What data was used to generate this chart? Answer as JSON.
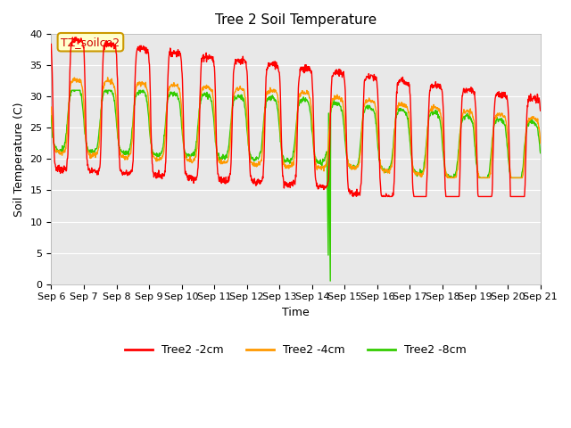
{
  "title": "Tree 2 Soil Temperature",
  "xlabel": "Time",
  "ylabel": "Soil Temperature (C)",
  "ylim": [
    0,
    40
  ],
  "xlim": [
    0,
    15
  ],
  "x_tick_labels": [
    "Sep 6",
    "Sep 7",
    "Sep 8",
    "Sep 9",
    "Sep 10",
    "Sep 11",
    "Sep 12",
    "Sep 13",
    "Sep 14",
    "Sep 15",
    "Sep 16",
    "Sep 17",
    "Sep 18",
    "Sep 19",
    "Sep 20",
    "Sep 21"
  ],
  "bg_color": "#e8e8e8",
  "fig_color": "#ffffff",
  "line_colors": [
    "#ff0000",
    "#ff9900",
    "#33cc00"
  ],
  "legend_labels": [
    "Tree2 -2cm",
    "Tree2 -4cm",
    "Tree2 -8cm"
  ],
  "annotation_text": "TZ_soilco2",
  "title_fontsize": 11,
  "tick_fontsize": 8,
  "ylabel_fontsize": 9,
  "xlabel_fontsize": 9,
  "legend_fontsize": 9,
  "grid_color": "#ffffff",
  "spine_color": "#aaaaaa"
}
